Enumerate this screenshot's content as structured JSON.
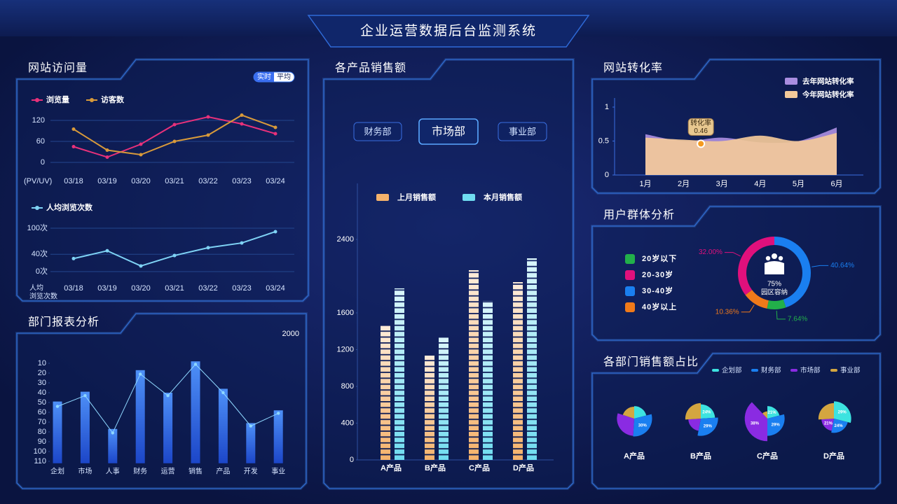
{
  "title": "企业运营数据后台监测系统",
  "chart_data": [
    {
      "type": "line",
      "title": "网站访问量",
      "buttons": [
        "实时",
        "平均"
      ],
      "y_label": "(PV/UV)",
      "categories": [
        "03/18",
        "03/19",
        "03/20",
        "03/21",
        "03/22",
        "03/23",
        "03/24"
      ],
      "series": [
        {
          "name": "浏览量",
          "color": "#e8317a",
          "values": [
            45,
            15,
            52,
            108,
            130,
            110,
            82
          ]
        },
        {
          "name": "访客数",
          "color": "#d89a3a",
          "values": [
            95,
            35,
            22,
            60,
            78,
            135,
            100
          ]
        }
      ],
      "ylim": [
        0,
        140
      ],
      "yticks": [
        0,
        60,
        120
      ],
      "grid": true
    },
    {
      "type": "line",
      "x_label": [
        "人均",
        "浏览次数"
      ],
      "categories": [
        "03/18",
        "03/19",
        "03/20",
        "03/21",
        "03/22",
        "03/23",
        "03/24"
      ],
      "series": [
        {
          "name": "人均浏览次数",
          "color": "#7fd3f5",
          "values": [
            30,
            48,
            13,
            37,
            55,
            66,
            92
          ]
        }
      ],
      "ylim": [
        0,
        100
      ],
      "yticks": [
        {
          "value": 0,
          "label": "0次"
        },
        {
          "value": 40,
          "label": "40次"
        },
        {
          "value": 100,
          "label": "100次"
        }
      ],
      "grid": true
    },
    {
      "type": "bar_line",
      "title": "部门报表分析",
      "annotation": "2000",
      "categories": [
        "企划",
        "市场",
        "人事",
        "财务",
        "运营",
        "销售",
        "产品",
        "开发",
        "事业"
      ],
      "values": [
        49,
        39,
        77,
        17,
        40,
        8,
        36,
        71,
        58
      ],
      "color": "#2f7cf5",
      "line_values": [
        54,
        43,
        81,
        21,
        43,
        11,
        40,
        74,
        61
      ],
      "line_color": "#8fd8ff",
      "ylim": [
        6,
        112
      ],
      "y_inverted": true,
      "yticks": [
        10,
        20,
        30,
        40,
        50,
        60,
        70,
        80,
        90,
        100,
        110
      ]
    },
    {
      "type": "bar",
      "title": "各产品销售额",
      "tabs": [
        "财务部",
        "市场部",
        "事业部"
      ],
      "active_tab": 1,
      "categories": [
        "A产品",
        "B产品",
        "C产品",
        "D产品"
      ],
      "series": [
        {
          "name": "上月销售额",
          "color": "#f5b26b",
          "values": [
            1470,
            1135,
            2065,
            1935
          ]
        },
        {
          "name": "本月销售额",
          "color": "#6fdcf0",
          "values": [
            1867,
            1333,
            1730,
            2194
          ]
        }
      ],
      "ylim": [
        0,
        3000
      ],
      "yticks": [
        0,
        400,
        800,
        1200,
        1600,
        2400
      ]
    },
    {
      "type": "area",
      "title": "网站转化率",
      "categories": [
        "1月",
        "2月",
        "3月",
        "4月",
        "5月",
        "6月"
      ],
      "series": [
        {
          "name": "去年网站转化率",
          "color": "#a98de0",
          "values": [
            0.6,
            0.5,
            0.55,
            0.48,
            0.5,
            0.7
          ]
        },
        {
          "name": "今年网站转化率",
          "color": "#f3c99a",
          "values": [
            0.55,
            0.52,
            0.5,
            0.58,
            0.5,
            0.62
          ]
        }
      ],
      "annotation": {
        "text": "转化率",
        "value": 0.46
      },
      "ylim": [
        0,
        1.1
      ],
      "yticks": [
        0,
        0.5,
        1
      ]
    },
    {
      "type": "donut",
      "title": "用户群体分析",
      "categories": [
        "20岁以下",
        "20-30岁",
        "30-40岁",
        "40岁以上"
      ],
      "colors": [
        "#22b04a",
        "#e0107c",
        "#1a7ff0",
        "#f07a1a"
      ],
      "values": [
        7.64,
        32.0,
        40.64,
        10.36
      ],
      "value_labels": [
        "7.64%",
        "32.00%",
        "40.64%",
        "10.36%"
      ],
      "center_label": "75%",
      "center_text": "园区容纳"
    },
    {
      "type": "pie",
      "title": "各部门销售额占比",
      "categories": [
        "企划部",
        "财务部",
        "市场部",
        "事业部"
      ],
      "colors": [
        "#3de3e0",
        "#1a7ff0",
        "#8a2be2",
        "#d4a640"
      ],
      "pies": [
        {
          "name": "A产品",
          "values": [
            21,
            30,
            29,
            20
          ],
          "value_labels": [
            null,
            "30%",
            null,
            null
          ]
        },
        {
          "name": "B产品",
          "values": [
            24,
            29,
            21,
            26
          ],
          "value_labels": [
            "24%",
            "29%",
            null,
            null
          ]
        },
        {
          "name": "C产品",
          "values": [
            21,
            29,
            38,
            12
          ],
          "value_labels": [
            "21%",
            "29%",
            "38%",
            null
          ]
        },
        {
          "name": "D产品",
          "values": [
            29,
            24,
            21,
            26
          ],
          "value_labels": [
            "29%",
            "24%",
            "21%",
            null
          ]
        }
      ]
    }
  ]
}
